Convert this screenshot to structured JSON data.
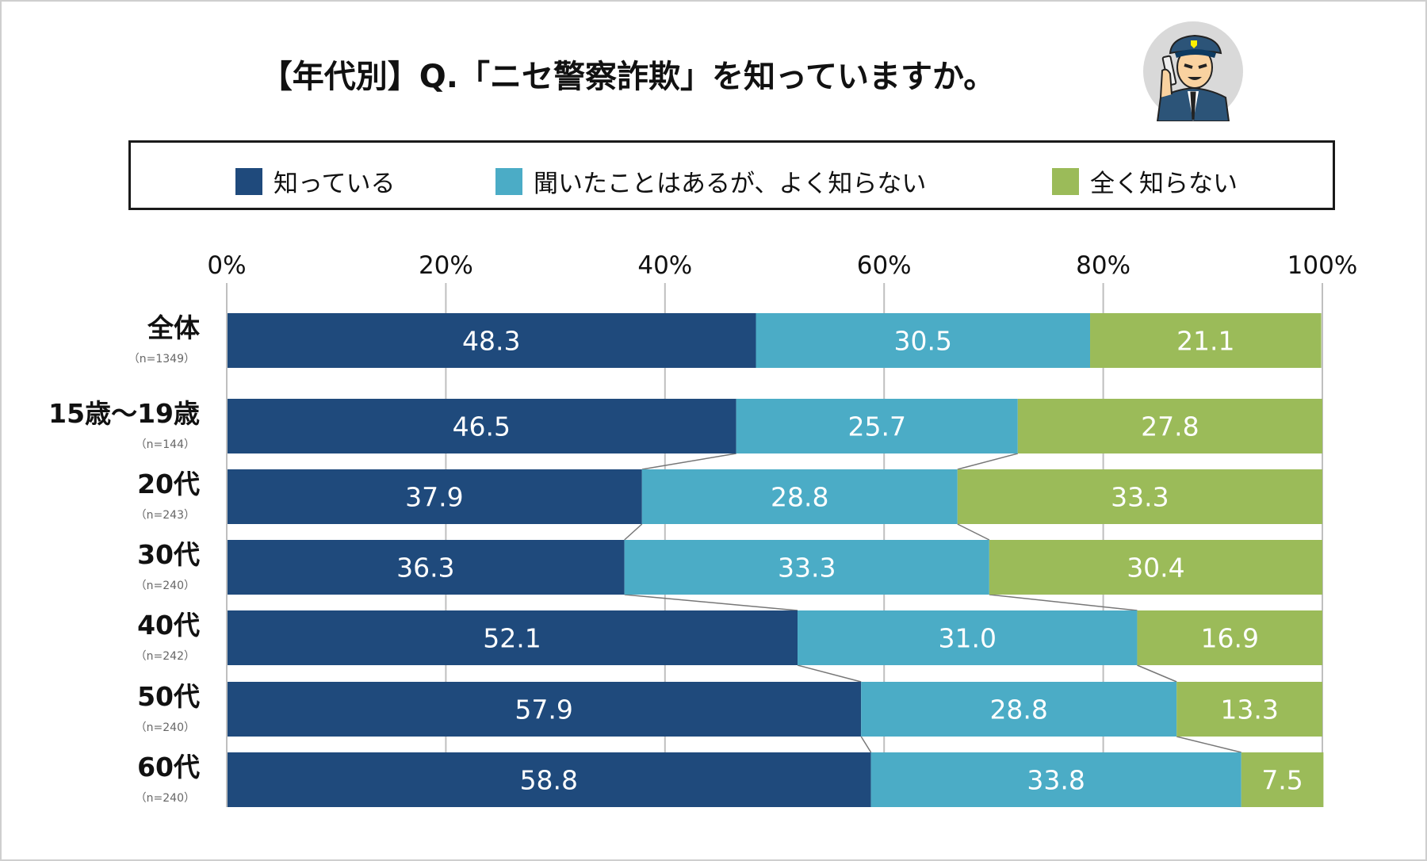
{
  "title": "【年代別】Q.「ニセ警察詐欺」を知っていますか。",
  "icon": "police-officer-on-phone-illustration",
  "colors": {
    "known": "#1f4a7c",
    "heard": "#4bacc6",
    "unknown": "#9bbb59"
  },
  "chart_data": {
    "type": "bar",
    "orientation": "horizontal",
    "stacked": true,
    "title": "【年代別】Q.「ニセ警察詐欺」を知っていますか。",
    "categories": [
      "全体",
      "15歳〜19歳",
      "20代",
      "30代",
      "40代",
      "50代",
      "60代"
    ],
    "sample_sizes": [
      "（n=1349）",
      "（n=144）",
      "（n=243）",
      "（n=240）",
      "（n=242）",
      "（n=240）",
      "（n=240）"
    ],
    "series": [
      {
        "name": "知っている",
        "values": [
          48.3,
          46.5,
          37.9,
          36.3,
          52.1,
          57.9,
          58.8
        ]
      },
      {
        "name": "聞いたことはあるが、よく知らない",
        "values": [
          30.5,
          25.7,
          28.8,
          33.3,
          31.0,
          28.8,
          33.8
        ]
      },
      {
        "name": "全く知らない",
        "values": [
          21.1,
          27.8,
          33.3,
          30.4,
          16.9,
          13.3,
          7.5
        ]
      }
    ],
    "xlim": [
      0,
      100
    ],
    "xticks": [
      "0%",
      "20%",
      "40%",
      "60%",
      "80%",
      "100%"
    ],
    "grid": true,
    "legend_position": "top"
  }
}
